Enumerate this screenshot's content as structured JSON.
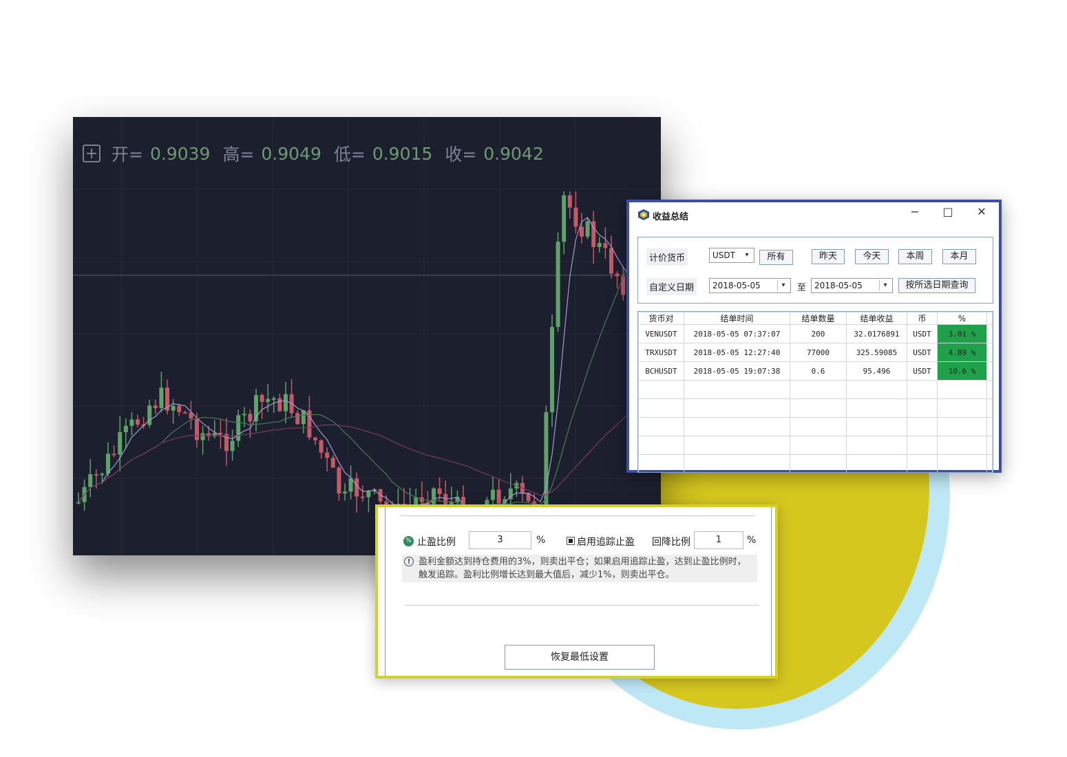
{
  "ohlc": {
    "open_label": "开=",
    "open_value": "0.9039",
    "high_label": "高=",
    "high_value": "0.9049",
    "low_label": "低=",
    "low_value": "0.9015",
    "close_label": "收=",
    "close_value": "0.9042"
  },
  "colors": {
    "chart_bg": "#1c1f2e",
    "candle_up": "#5fa36a",
    "candle_down": "#c45a68",
    "accent_green": "#1fa04a",
    "window_border": "#3b4fa8",
    "settings_border": "#d6d02c"
  },
  "window": {
    "title": "收益总结",
    "minimize": "−",
    "maximize": "□",
    "close": "✕",
    "quote_currency_label": "计价货币",
    "quote_currency_value": "USDT",
    "btn_all": "所有",
    "btn_yesterday": "昨天",
    "btn_today": "今天",
    "btn_week": "本周",
    "btn_month": "本月",
    "custom_date_label": "自定义日期",
    "date_from": "2018-05-05",
    "date_to_sep": "至",
    "date_to": "2018-05-05",
    "btn_query": "按所选日期查询",
    "columns": [
      "货币对",
      "结单时间",
      "结单数量",
      "结单收益",
      "币",
      "%"
    ],
    "rows": [
      [
        "VENUSDT",
        "2018-05-05 07:37:07",
        "200",
        "32.0176891",
        "USDT",
        "3.01 %"
      ],
      [
        "TRXUSDT",
        "2018-05-05 12:27:40",
        "77000",
        "325.59085",
        "USDT",
        "4.89 %"
      ],
      [
        "BCHUSDT",
        "2018-05-05 19:07:38",
        "0.6",
        "95.496",
        "USDT",
        "10.6 %"
      ]
    ]
  },
  "settings": {
    "take_profit_label": "止盈比例",
    "take_profit_value": "3",
    "percent_sign": "%",
    "trailing_label": "启用追踪止盈",
    "pullback_label": "回降比例",
    "pullback_value": "1",
    "note": "盈利金额达到持仓费用的3%，则卖出平仓；如果启用追踪止盈，达到止盈比例时，触发追踪。盈利比例增长达到最大值后，减少1%，则卖出平仓。",
    "restore_button": "恢复最低设置"
  }
}
